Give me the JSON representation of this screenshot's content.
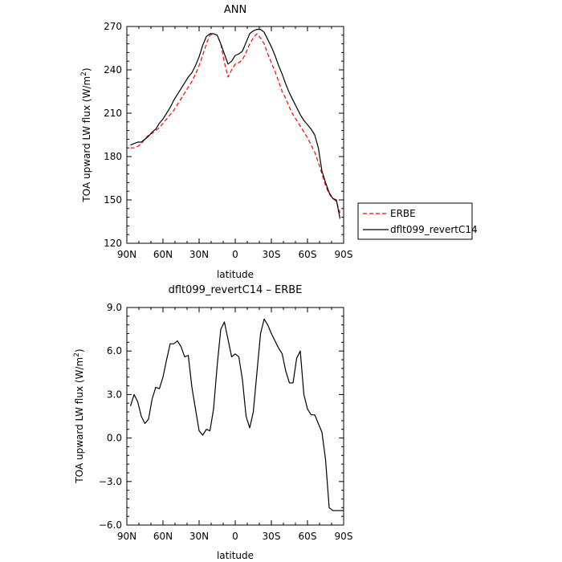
{
  "chart_data": [
    {
      "type": "line",
      "title": "ANN",
      "xlabel": "latitude",
      "ylabel": "TOA upward LW flux (W/m²)",
      "ylabel_base": "TOA upward LW flux (W/m",
      "ylabel_sup": "2",
      "ylabel_end": ")",
      "xlim": [
        90,
        -90
      ],
      "ylim": [
        120,
        270
      ],
      "xtick_values": [
        90,
        60,
        30,
        0,
        -30,
        -60,
        -90
      ],
      "xticks": [
        "90N",
        "60N",
        "30N",
        "0",
        "30S",
        "60S",
        "90S"
      ],
      "ytick_values": [
        120,
        150,
        180,
        210,
        240,
        270
      ],
      "yticks": [
        "120",
        "150",
        "180",
        "210",
        "240",
        "270"
      ],
      "legend_position": "outside-right",
      "series": [
        {
          "name": "ERBE",
          "color": "#ff0000",
          "dashed": true,
          "x": [
            87,
            84,
            81,
            78,
            75,
            72,
            69,
            66,
            63,
            60,
            57,
            54,
            51,
            48,
            45,
            42,
            39,
            36,
            33,
            30,
            27,
            24,
            21,
            18,
            15,
            12,
            9,
            6,
            3,
            0,
            -3,
            -6,
            -9,
            -12,
            -15,
            -18,
            -21,
            -24,
            -27,
            -30,
            -33,
            -36,
            -39,
            -42,
            -45,
            -48,
            -51,
            -54,
            -57,
            -60,
            -63,
            -66,
            -69,
            -72,
            -75,
            -78,
            -81,
            -84,
            -87
          ],
          "y": [
            186,
            186,
            187,
            189,
            192,
            195,
            196,
            198,
            200,
            203,
            206,
            209,
            212,
            216,
            220,
            224,
            228,
            232,
            237,
            243,
            250,
            258,
            264,
            265,
            264,
            258,
            245,
            235,
            240,
            244,
            245,
            247,
            252,
            258,
            262,
            265,
            262,
            258,
            251,
            245,
            239,
            232,
            225,
            220,
            214,
            209,
            205,
            201,
            197,
            193,
            188,
            183,
            176,
            168,
            160,
            154,
            151,
            149,
            141
          ]
        },
        {
          "name": "dflt099_revertC14",
          "color": "#000000",
          "dashed": false,
          "x": [
            87,
            84,
            81,
            78,
            75,
            72,
            69,
            66,
            63,
            60,
            57,
            54,
            51,
            48,
            45,
            42,
            39,
            36,
            33,
            30,
            27,
            24,
            21,
            18,
            15,
            12,
            9,
            6,
            3,
            0,
            -3,
            -6,
            -9,
            -12,
            -15,
            -18,
            -21,
            -24,
            -27,
            -30,
            -33,
            -36,
            -39,
            -42,
            -45,
            -48,
            -51,
            -54,
            -57,
            -60,
            -63,
            -66,
            -69,
            -72,
            -75,
            -78,
            -81,
            -84,
            -87
          ],
          "y": [
            188,
            189,
            190,
            190,
            192,
            194,
            197,
            199,
            203,
            206,
            210,
            214,
            219,
            223,
            227,
            231,
            235,
            238,
            243,
            249,
            257,
            263,
            265,
            265,
            264,
            258,
            251,
            244,
            246,
            250,
            251,
            253,
            259,
            265,
            267,
            268,
            268,
            266,
            261,
            256,
            250,
            243,
            237,
            230,
            224,
            219,
            214,
            209,
            205,
            202,
            199,
            195,
            186,
            170,
            162,
            155,
            151,
            150,
            137
          ]
        }
      ]
    },
    {
      "type": "line",
      "title": "dflt099_revertC14 – ERBE",
      "xlabel": "latitude",
      "ylabel": "TOA upward LW flux (W/m²)",
      "ylabel_base": "TOA upward LW flux (W/m",
      "ylabel_sup": "2",
      "ylabel_end": ")",
      "xlim": [
        90,
        -90
      ],
      "ylim": [
        -6,
        9
      ],
      "xtick_values": [
        90,
        60,
        30,
        0,
        -30,
        -60,
        -90
      ],
      "xticks": [
        "90N",
        "60N",
        "30N",
        "0",
        "30S",
        "60S",
        "90S"
      ],
      "ytick_values": [
        -6,
        -3,
        0,
        3,
        6,
        9
      ],
      "yticks": [
        "−6.0",
        "−3.0",
        "0.0",
        "3.0",
        "6.0",
        "9.0"
      ],
      "series": [
        {
          "color": "#000000",
          "dashed": false,
          "x": [
            87,
            84,
            81,
            78,
            75,
            72,
            69,
            66,
            63,
            60,
            57,
            54,
            51,
            48,
            45,
            42,
            39,
            36,
            33,
            30,
            27,
            24,
            21,
            18,
            15,
            12,
            9,
            6,
            3,
            0,
            -3,
            -6,
            -9,
            -12,
            -15,
            -18,
            -21,
            -24,
            -27,
            -30,
            -33,
            -36,
            -39,
            -42,
            -45,
            -48,
            -51,
            -54,
            -57,
            -60,
            -63,
            -66,
            -69,
            -72,
            -75,
            -78,
            -81,
            -84,
            -87,
            -90
          ],
          "y": [
            2.2,
            3.0,
            2.5,
            1.5,
            1.0,
            1.3,
            2.7,
            3.5,
            3.4,
            4.2,
            5.4,
            6.5,
            6.5,
            6.7,
            6.3,
            5.6,
            5.7,
            3.5,
            2.0,
            0.5,
            0.2,
            0.6,
            0.5,
            2.0,
            5.0,
            7.5,
            8.0,
            6.8,
            5.6,
            5.8,
            5.6,
            4.0,
            1.5,
            0.7,
            1.8,
            4.5,
            7.2,
            8.2,
            7.8,
            7.2,
            6.7,
            6.2,
            5.8,
            4.6,
            3.8,
            3.8,
            5.5,
            6.0,
            3.0,
            2.0,
            1.6,
            1.6,
            1.0,
            0.4,
            -1.5,
            -4.8,
            -5.0,
            -5.0,
            -5.0,
            -5.0
          ]
        }
      ]
    }
  ]
}
